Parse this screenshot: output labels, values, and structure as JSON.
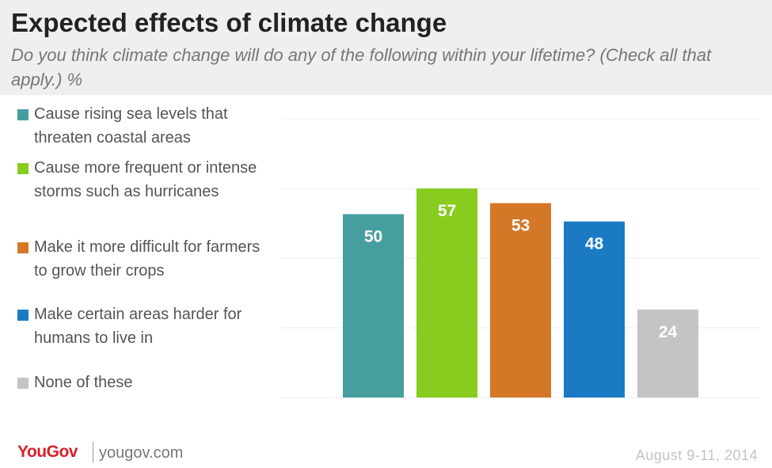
{
  "header": {
    "title": "Expected effects of climate change",
    "subtitle": "Do you think climate change will do any of the following within your lifetime? (Check all that apply.) %"
  },
  "footer": {
    "logo": "YouGov",
    "url": "yougov.com",
    "date": "August 9-11, 2014"
  },
  "chart_data": {
    "type": "bar",
    "categories": [
      "Cause rising sea levels that threaten coastal areas",
      "Cause more frequent or intense storms such as hurricanes",
      "Make it more difficult for farmers to grow their crops",
      "Make certain areas harder for humans to live in",
      "None of these"
    ],
    "values": [
      50,
      57,
      53,
      48,
      24
    ],
    "colors": [
      "#479e9e",
      "#87cc1e",
      "#d47828",
      "#1a7bc4",
      "#c4c4c4"
    ],
    "ylim": [
      0,
      76
    ],
    "grid": true,
    "legend_position": "left",
    "data_labels": true
  }
}
